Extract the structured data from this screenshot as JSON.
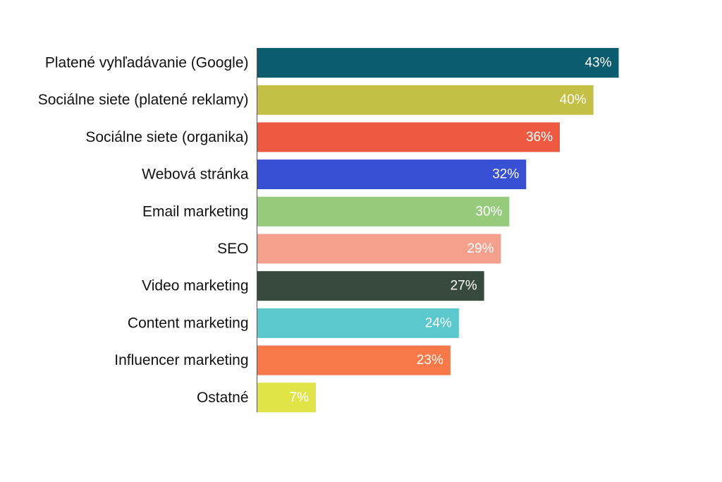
{
  "chart_data": {
    "type": "bar",
    "orientation": "horizontal",
    "categories": [
      "Platené vyhľadávanie (Google)",
      "Sociálne siete (platené reklamy)",
      "Sociálne siete (organika)",
      "Webová stránka",
      "Email marketing",
      "SEO",
      "Video marketing",
      "Content marketing",
      "Influencer marketing",
      "Ostatné"
    ],
    "values": [
      43,
      40,
      36,
      32,
      30,
      29,
      27,
      24,
      23,
      7
    ],
    "value_labels": [
      "43%",
      "40%",
      "36%",
      "32%",
      "30%",
      "29%",
      "27%",
      "24%",
      "23%",
      "7%"
    ],
    "colors": [
      "#0b5c6e",
      "#c4bf45",
      "#ee5a40",
      "#3750d4",
      "#96cb7c",
      "#f5a08d",
      "#374a3d",
      "#5bc8cd",
      "#f77849",
      "#e1e447"
    ],
    "value_unit": "%",
    "xlim": [
      0,
      43
    ],
    "grid": false,
    "legend": "none",
    "title": "",
    "xlabel": "",
    "ylabel": ""
  }
}
